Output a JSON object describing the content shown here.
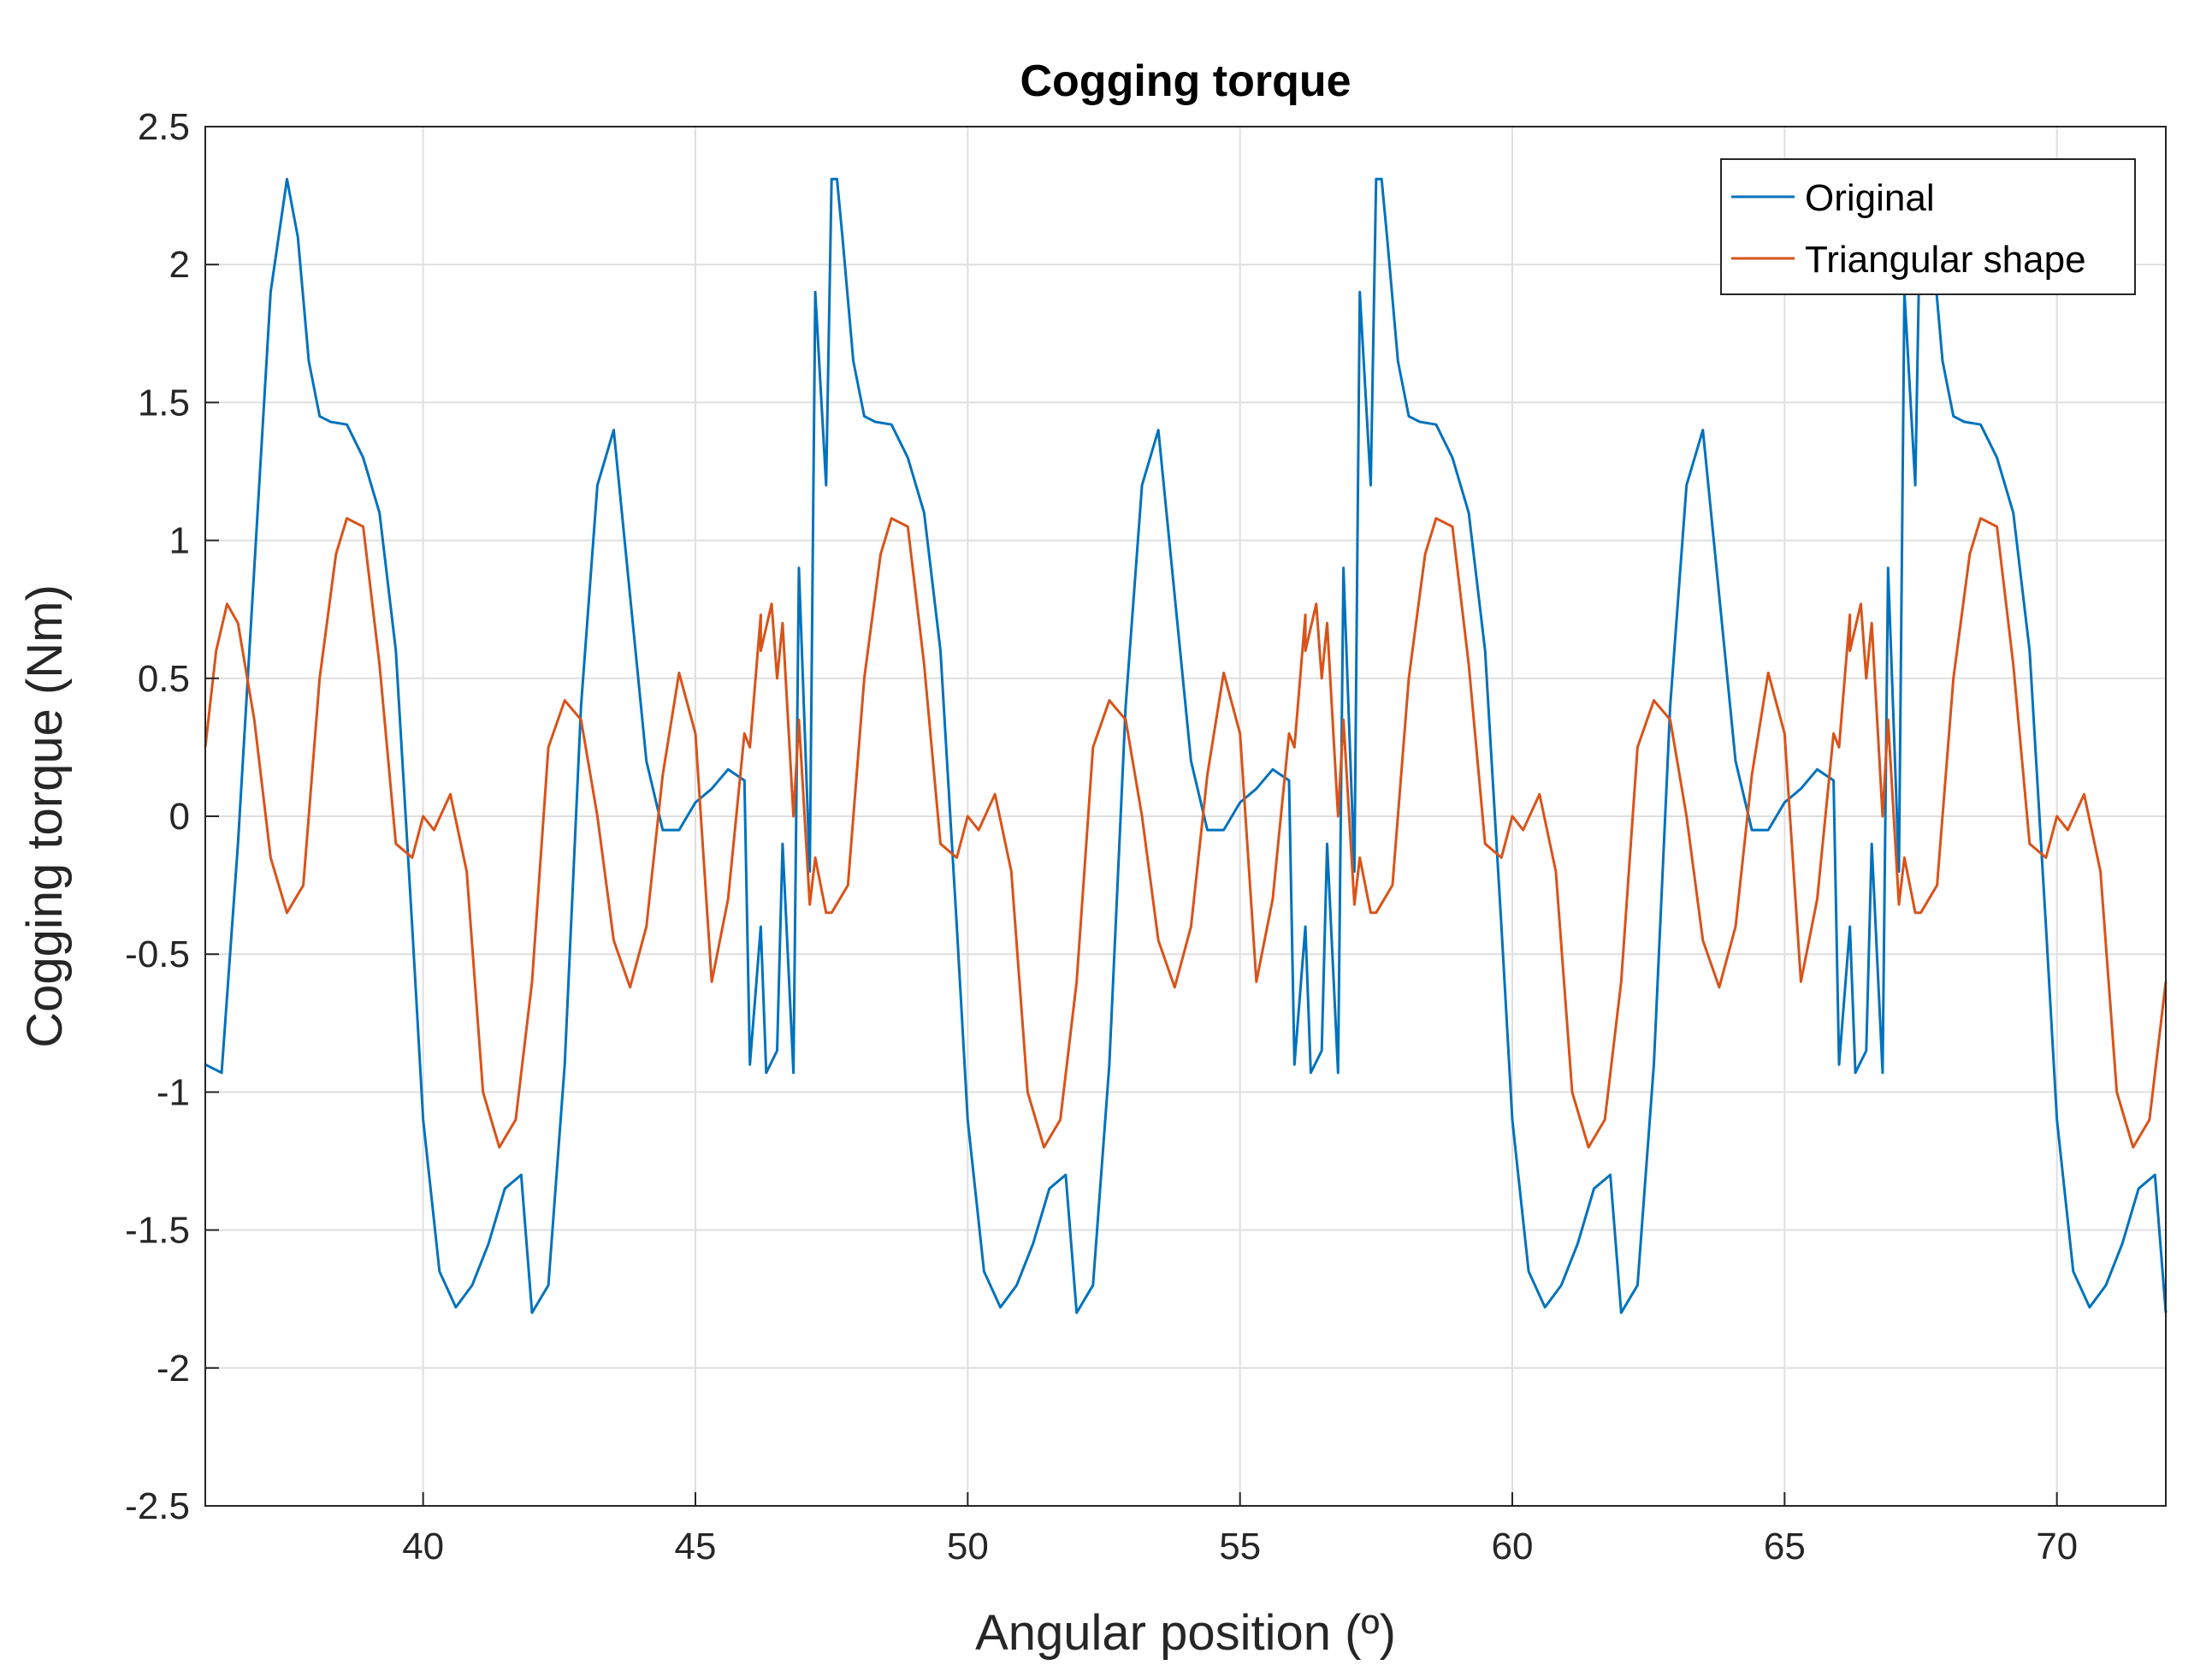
{
  "chart_data": {
    "type": "line",
    "title": "Cogging torque",
    "xlabel": "Angular position (º)",
    "ylabel": "Cogging torque (Nm)",
    "xlim": [
      36,
      72
    ],
    "ylim": [
      -2.5,
      2.5
    ],
    "xticks": [
      40,
      45,
      50,
      55,
      60,
      65,
      70
    ],
    "yticks": [
      -2.5,
      -2,
      -1.5,
      -1,
      -0.5,
      0,
      0.5,
      1,
      1.5,
      2,
      2.5
    ],
    "xtick_labels": [
      "40",
      "45",
      "50",
      "55",
      "60",
      "65",
      "70"
    ],
    "ytick_labels": [
      "-2.5",
      "-2",
      "-1.5",
      "-1",
      "-0.5",
      "0",
      "0.5",
      "1",
      "1.5",
      "2",
      "2.5"
    ],
    "grid": true,
    "legend_position": "top-right",
    "series": [
      {
        "name": "Original",
        "color": "#0072BD",
        "x": [
          36.0,
          36.3,
          36.6,
          36.9,
          37.2,
          37.5,
          37.7,
          37.9,
          38.1,
          38.3,
          38.6,
          38.9,
          39.2,
          39.5,
          39.8,
          40.0,
          40.3,
          40.6,
          40.9,
          41.2,
          41.5,
          41.8,
          42.0,
          42.3,
          42.6,
          42.9,
          43.2,
          43.5,
          43.8,
          44.1,
          44.4,
          44.7,
          45.0,
          45.3,
          45.6,
          45.9,
          46.2,
          46.5,
          46.8,
          47.1,
          47.4,
          47.6
        ],
        "y": [
          -0.9,
          -0.93,
          -0.1,
          0.9,
          1.9,
          2.31,
          2.1,
          1.65,
          1.45,
          1.43,
          1.42,
          1.3,
          1.1,
          0.6,
          -0.4,
          -1.1,
          -1.65,
          -1.78,
          -1.7,
          -1.55,
          -1.35,
          -1.3,
          -1.8,
          -1.7,
          -0.9,
          0.4,
          1.2,
          1.4,
          0.8,
          0.2,
          -0.05,
          -0.05,
          0.05,
          0.1,
          0.17,
          0.13,
          -0.4,
          -0.85,
          -0.93,
          -0.2,
          1.2,
          2.31
        ]
      },
      {
        "name": "Triangular shape",
        "color": "#D95319",
        "x": [
          36.0,
          36.2,
          36.4,
          36.6,
          36.9,
          37.2,
          37.5,
          37.8,
          38.1,
          38.4,
          38.6,
          38.9,
          39.2,
          39.5,
          39.8,
          40.0,
          40.2,
          40.5,
          40.8,
          41.1,
          41.4,
          41.7,
          42.0,
          42.3,
          42.6,
          42.9,
          43.2,
          43.5,
          43.8,
          44.1,
          44.4,
          44.7,
          45.0,
          45.3,
          45.6,
          45.9,
          46.2,
          46.5,
          46.8,
          47.1,
          47.4
        ],
        "y": [
          0.25,
          0.6,
          0.77,
          0.7,
          0.35,
          -0.15,
          -0.35,
          -0.25,
          0.5,
          0.95,
          1.08,
          1.05,
          0.55,
          -0.1,
          -0.15,
          0.0,
          -0.05,
          0.08,
          -0.2,
          -1.0,
          -1.2,
          -1.1,
          -0.6,
          0.25,
          0.42,
          0.35,
          0.0,
          -0.45,
          -0.62,
          -0.4,
          0.15,
          0.52,
          0.3,
          -0.6,
          -0.3,
          0.3,
          0.73,
          0.5,
          0.0,
          -0.32,
          -0.35
        ]
      }
    ]
  }
}
